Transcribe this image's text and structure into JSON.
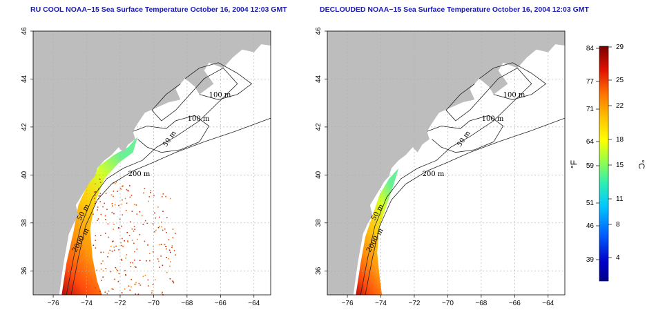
{
  "panels": [
    {
      "title": "RU COOL NOAA−15 Sea Surface Temperature October 16, 2004 12:03 GMT",
      "contour_labels": [
        "100 m",
        "100 m",
        "50 m",
        "200 m",
        "50 m",
        "2000 m"
      ]
    },
    {
      "title": "DECLOUDED NOAA−15 Sea Surface Temperature October 16, 2004 12:03 GMT",
      "contour_labels": [
        "100 m",
        "100 m",
        "50 m",
        "200 m",
        "50 m",
        "2000 m"
      ]
    }
  ],
  "axes": {
    "x_ticks": [
      "−76",
      "−74",
      "−72",
      "−70",
      "−68",
      "−66",
      "−64"
    ],
    "y_ticks": [
      "36",
      "38",
      "40",
      "42",
      "44",
      "46"
    ],
    "lon_range": [
      -77.2,
      -63.0
    ],
    "lat_range": [
      35.0,
      46.0
    ]
  },
  "colorbar": {
    "fahrenheit_ticks": [
      "84",
      "77",
      "71",
      "64",
      "59",
      "51",
      "46",
      "39"
    ],
    "celsius_ticks": [
      "29",
      "25",
      "22",
      "18",
      "15",
      "11",
      "8",
      "4"
    ],
    "fahrenheit_unit": "°F",
    "celsius_unit": "°C",
    "colors": [
      "#7a0000",
      "#c00000",
      "#ff2a00",
      "#ff8000",
      "#ffc000",
      "#ffff00",
      "#b0ff40",
      "#40ff90",
      "#00e0e0",
      "#00a0ff",
      "#0050ff",
      "#0000c0",
      "#00008b"
    ]
  },
  "colors": {
    "land": "#bdbdbd",
    "title": "#1a1ab0",
    "grid": "#b0b0b0"
  }
}
